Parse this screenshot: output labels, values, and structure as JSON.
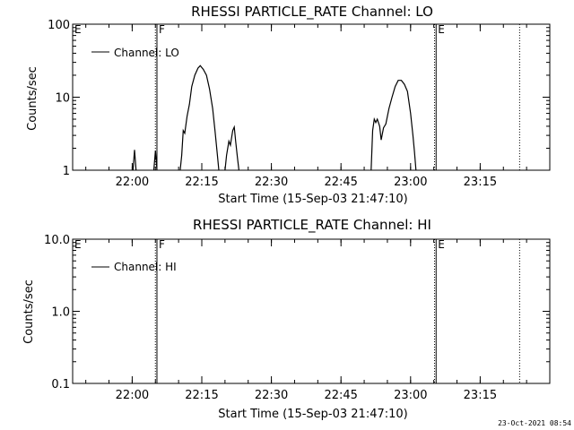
{
  "chart_data": [
    {
      "type": "line",
      "title": "RHESSI PARTICLE_RATE Channel: LO",
      "xlabel": "Start Time (15-Sep-03 21:47:10)",
      "ylabel": "Counts/sec",
      "yscale": "log",
      "xlim": [
        "21:47:10",
        "23:30:00"
      ],
      "ylim": [
        1,
        100
      ],
      "xticks": [
        "22:00",
        "22:15",
        "22:30",
        "22:45",
        "23:00",
        "23:15"
      ],
      "yticks": [
        "1",
        "10",
        "100"
      ],
      "legend": {
        "placement": "top-left",
        "label": "Channel: LO"
      },
      "region_labels": [
        {
          "text": "E",
          "time": "21:47:10"
        },
        {
          "text": "F",
          "time": "22:05:20"
        },
        {
          "text": "E",
          "time": "23:05:30"
        }
      ],
      "vlines": [
        {
          "time": "22:05:00",
          "style": "dotted"
        },
        {
          "time": "22:05:20",
          "style": "solid"
        },
        {
          "time": "23:05:10",
          "style": "dotted"
        },
        {
          "time": "23:05:30",
          "style": "solid"
        },
        {
          "time": "23:23:30",
          "style": "dotted"
        }
      ],
      "series": [
        {
          "name": "Channel: LO",
          "segments": [
            [
              [
                "22:00:10",
                1
              ],
              [
                "22:00:30",
                1.9
              ],
              [
                "22:00:50",
                1
              ]
            ],
            [
              [
                "22:04:40",
                1
              ],
              [
                "22:05:00",
                1.85
              ],
              [
                "22:05:20",
                1
              ]
            ],
            [
              [
                "22:10:20",
                1
              ],
              [
                "22:10:40",
                1.6
              ],
              [
                "22:11:00",
                3.5
              ],
              [
                "22:11:20",
                3.2
              ],
              [
                "22:11:50",
                5.5
              ],
              [
                "22:12:20",
                8
              ],
              [
                "22:12:50",
                14
              ],
              [
                "22:13:30",
                20
              ],
              [
                "22:14:10",
                25
              ],
              [
                "22:14:40",
                27
              ],
              [
                "22:15:20",
                24
              ],
              [
                "22:16:00",
                20
              ],
              [
                "22:16:40",
                13
              ],
              [
                "22:17:20",
                7
              ],
              [
                "22:17:50",
                3.5
              ],
              [
                "22:18:20",
                1.7
              ],
              [
                "22:18:40",
                1
              ]
            ],
            [
              [
                "22:20:00",
                1
              ],
              [
                "22:20:20",
                1.6
              ],
              [
                "22:20:50",
                2.5
              ],
              [
                "22:21:10",
                2.2
              ],
              [
                "22:21:40",
                3.5
              ],
              [
                "22:22:00",
                3.9
              ],
              [
                "22:22:20",
                2.4
              ],
              [
                "22:22:40",
                1.5
              ],
              [
                "22:23:00",
                1
              ]
            ],
            [
              [
                "22:51:30",
                1
              ],
              [
                "22:51:50",
                3.5
              ],
              [
                "22:52:10",
                5
              ],
              [
                "22:52:30",
                4.5
              ],
              [
                "22:52:50",
                5
              ],
              [
                "22:53:20",
                4
              ],
              [
                "22:53:40",
                2.6
              ],
              [
                "22:54:10",
                3.8
              ],
              [
                "22:54:40",
                4.3
              ],
              [
                "22:55:20",
                7
              ],
              [
                "22:56:00",
                10
              ],
              [
                "22:56:40",
                14
              ],
              [
                "22:57:20",
                17
              ],
              [
                "22:58:00",
                17
              ],
              [
                "22:58:40",
                15
              ],
              [
                "22:59:20",
                12
              ],
              [
                "23:00:00",
                6
              ],
              [
                "23:00:30",
                3
              ],
              [
                "23:00:50",
                1.8
              ],
              [
                "23:01:10",
                1
              ]
            ]
          ]
        }
      ]
    },
    {
      "type": "line",
      "title": "RHESSI PARTICLE_RATE Channel: HI",
      "xlabel": "Start Time (15-Sep-03 21:47:10)",
      "ylabel": "Counts/sec",
      "yscale": "log",
      "xlim": [
        "21:47:10",
        "23:30:00"
      ],
      "ylim": [
        0.1,
        10
      ],
      "xticks": [
        "22:00",
        "22:15",
        "22:30",
        "22:45",
        "23:00",
        "23:15"
      ],
      "yticks": [
        "0.1",
        "1.0",
        "10.0"
      ],
      "legend": {
        "placement": "top-left",
        "label": "Channel: HI"
      },
      "region_labels": [
        {
          "text": "E",
          "time": "21:47:10"
        },
        {
          "text": "F",
          "time": "22:05:20"
        },
        {
          "text": "E",
          "time": "23:05:30"
        }
      ],
      "vlines": [
        {
          "time": "22:05:00",
          "style": "dotted"
        },
        {
          "time": "22:05:20",
          "style": "solid"
        },
        {
          "time": "23:05:10",
          "style": "dotted"
        },
        {
          "time": "23:05:30",
          "style": "solid"
        },
        {
          "time": "23:23:30",
          "style": "dotted"
        }
      ],
      "series": [
        {
          "name": "Channel: HI",
          "segments": []
        }
      ]
    }
  ],
  "timestamp": "23-Oct-2021 08:54"
}
